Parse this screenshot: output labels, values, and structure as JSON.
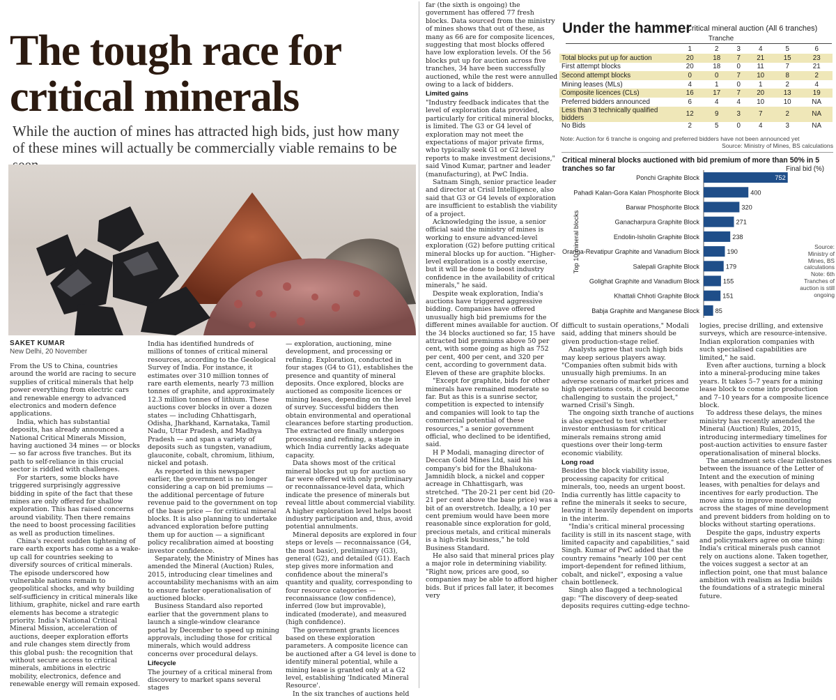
{
  "article": {
    "headline": "The tough race for critical minerals",
    "subhead": "While the auction of mines has attracted high bids, just how many of these mines will actually be commercially viable remains to be seen",
    "byline": "SAKET KUMAR",
    "dateline": "New Delhi, 20 November",
    "col1": [
      "From the US to China, countries around the world are racing to secure supplies of critical minerals that help power everything from electric cars and renewable energy to advanced electronics and modern defence applications.",
      "India, which has substantial deposits, has already announced a National Critical Minerals Mission, having auctioned 34 mines — or blocks — so far across five tranches. But its path to self-reliance in this crucial sector is riddled with challenges.",
      "For starters, some blocks have triggered surprisingly aggressive bidding in spite of the fact that these mines are only offered for shallow exploration. This has raised concerns around viability. Then there remains the need to boost processing facilities as well as production timelines.",
      "China's recent sudden tightening of rare earth exports has come as a wake-up call for countries seeking to diversify sources of critical minerals. The episode underscored how vulnerable nations remain to geopolitical shocks, and why building self-sufficiency in critical minerals like lithium, graphite, nickel and rare earth elements has become a strategic priority. India's National Critical Mineral Mission, acceleration of auctions, deeper exploration efforts and rule changes stem directly from this global push: the recognition that without secure access to critical minerals, ambitions in electric mobility, electronics, defence and renewable energy will remain exposed."
    ],
    "col2": [
      "India has identified hundreds of millions of tonnes of critical mineral resources, according to the Geological Survey of India. For instance, it estimates over 310 million tonnes of rare earth elements, nearly 73 million tonnes of graphite, and approximately 12.3 million tonnes of lithium. These auctions cover blocks in over a dozen states — including Chhattisgarh, Odisha, Jharkhand, Karnataka, Tamil Nadu, Uttar Pradesh, and Madhya Pradesh — and span a variety of deposits such as tungsten, vanadium, glauconite, cobalt, chromium, lithium, nickel and potash.",
      "As reported in this newspaper earlier, the government is no longer considering a cap on bid premiums — the additional percentage of future revenue paid to the government on top of the base price — for critical mineral blocks. It is also planning to undertake advanced exploration before putting them up for auction — a significant policy recalibration aimed at boosting investor confidence.",
      "Separately, the Ministry of Mines has amended the Mineral (Auction) Rules, 2015, introducing clear timelines and accountability mechanisms with an aim to ensure faster operationalisation of auctioned blocks.",
      "Business Standard also reported earlier that the government plans to launch a single-window clearance portal by December to speed up mining approvals, including those for critical minerals, which would address concerns over procedural delays."
    ],
    "col2_heading": "Lifecycle",
    "col2_after": "The journey of a critical mineral from discovery to market spans several stages",
    "col3": [
      "— exploration, auctioning, mine development, and processing or refining. Exploration, conducted in four stages (G4 to G1), establishes the presence and quantity of mineral deposits. Once explored, blocks are auctioned as composite licences or mining leases, depending on the level of survey. Successful bidders then obtain environmental and operational clearances before starting production. The extracted ore finally undergoes processing and refining, a stage in which India currently lacks adequate capacity.",
      "Data shows most of the critical mineral blocks put up for auction so far were offered with only preliminary or reconnaissance-level data, which indicate the presence of minerals but reveal little about commercial viability. A higher exploration level helps boost industry participation and, thus, avoid potential annulments.",
      "Mineral deposits are explored in four steps or levels — reconnaissance (G4, the most basic), preliminary (G3), general (G2), and detailed (G1). Each step gives more information and confidence about the mineral's quantity and quality, corresponding to four resource categories — reconnaissance (low confidence), inferred (low but improvable), indicated (moderate), and measured (high confidence).",
      "The government grants licences based on these exploration parameters. A composite licence can be auctioned after a G4 level is done to identify mineral potential, while a mining lease is granted only at a G2 level, establishing 'Indicated Mineral Resource'.",
      "In the six tranches of auctions held so"
    ],
    "col4": [
      "far (the sixth is ongoing) the government has offered 77 fresh blocks. Data sourced from the ministry of mines shows that out of these, as many as 66 are for composite licences, suggesting that most blocks offered have low exploration levels. Of the 56 blocks put up for auction across five tranches, 34 have been successfully auctioned, while the rest were annulled owing to a lack of bidders."
    ],
    "col4_heading": "Limited gains",
    "col4_after": [
      "\"Industry feedback indicates that the level of exploration data provided, particularly for critical mineral blocks, is limited. The G3 or G4 level of exploration may not meet the expectations of major private firms, who typically seek G1 or G2 level reports to make investment decisions,\" said Vinod Kumar, partner and leader (manufacturing), at PwC India.",
      "Satnam Singh, senior practice leader and director at Crisil Intelligence, also said that G3 or G4 levels of exploration are insufficient to establish the viability of a project.",
      "Acknowledging the issue, a senior official said the ministry of mines is working to ensure advanced-level exploration (G2) before putting critical mineral blocks up for auction. \"Higher-level exploration is a costly exercise, but it will be done to boost industry confidence in the availability of critical minerals,\" he said.",
      "Despite weak exploration, India's auctions have triggered aggressive bidding. Companies have offered unusually high bid premiums for the different mines available for auction. Of the 34 blocks auctioned so far, 15 have attracted bid premiums above 50 per cent, with some going as high as 752 per cent, 400 per cent, and 320 per cent, according to government data. Eleven of these are graphite blocks.",
      "\"Except for graphite, bids for other minerals have remained moderate so far. But as this is a sunrise sector, competition is expected to intensify and companies will look to tap the commercial potential of these resources,\" a senior government official, who declined to be identified, said.",
      "H P Modali, managing director of Deccan Gold Mines Ltd, said his company's bid for the Bhalukona-Jamnidih block, a nickel and copper acreage in Chhattisgarh, was stretched. \"The 20-21 per cent bid (20-21 per cent above the base price) was a bit of an overstretch. Ideally, a 10 per cent premium would have been more reasonable since exploration for gold, precious metals, and critical minerals is a high-risk business,\" he told Business Standard.",
      "He also said that mineral prices play a major role in determining viability. \"Right now, prices are good, so companies may be able to afford higher bids. But if prices fall later, it becomes very"
    ],
    "col5": [
      "difficult to sustain operations,\" Modali said, adding that miners should be given production-stage relief.",
      "Analysts agree that such high bids may keep serious players away. \"Companies often submit bids with unusually high premiums. In an adverse scenario of market prices and high operations costs, it could become challenging to sustain the project,\" warned Crisil's Singh.",
      "The ongoing sixth tranche of auctions is also expected to test whether investor enthusiasm for critical minerals remains strong amid questions over their long-term economic viability."
    ],
    "col5_heading": "Long road",
    "col5_after": [
      "Besides the block viability issue, processing capacity for critical minerals, too, needs an urgent boost. India currently has little capacity to refine the minerals it seeks to secure, leaving it heavily dependent on imports in the interim.",
      "\"India's critical mineral processing facility is still in its nascent stage, with limited capacity and capabilities,\" said Singh. Kumar of PwC added that the country remains \"nearly 100 per cent import-dependent for refined lithium, cobalt, and nickel\", exposing a value chain bottleneck.",
      "Singh also flagged a technological gap: \"The discovery of deep-seated deposits requires cutting-edge techno-"
    ],
    "col6": [
      "logies, precise drilling, and extensive surveys, which are resource-intensive. Indian exploration companies with such specialised capabilities are limited,\" he said.",
      "Even after auctions, turning a block into a mineral-producing mine takes years. It takes 5–7 years for a mining lease block to come into production and 7–10 years for a composite licence block.",
      "To address these delays, the mines ministry has recently amended the Mineral (Auction) Rules, 2015, introducing intermediary timelines for post-auction activities to ensure faster operationalisation of mineral blocks.",
      "The amendment sets clear milestones between the issuance of the Letter of Intent and the execution of mining leases, with penalties for delays and incentives for early production. The move aims to improve monitoring across the stages of mine development and prevent bidders from holding on to blocks without starting operations.",
      "Despite the gaps, industry experts and policymakers agree on one thing: India's critical minerals push cannot rely on auctions alone. Taken together, the voices suggest a sector at an inflection point, one that must balance ambition with realism as India builds the foundations of a strategic mineral future."
    ]
  },
  "table": {
    "title": "Under the hammer",
    "subtitle": "Critical mineral auction (All 6 tranches)",
    "group_label": "Tranche",
    "columns": [
      "1",
      "2",
      "3",
      "4",
      "5",
      "6"
    ],
    "rows": [
      {
        "label": "Total blocks put up for auction",
        "values": [
          "20",
          "18",
          "7",
          "21",
          "15",
          "23"
        ],
        "shaded": true
      },
      {
        "label": "First attempt blocks",
        "values": [
          "20",
          "18",
          "0",
          "11",
          "7",
          "21"
        ],
        "shaded": false
      },
      {
        "label": "Second attempt blocks",
        "values": [
          "0",
          "0",
          "7",
          "10",
          "8",
          "2"
        ],
        "shaded": true
      },
      {
        "label": "Mining leases (MLs)",
        "values": [
          "4",
          "1",
          "0",
          "1",
          "2",
          "4"
        ],
        "shaded": false
      },
      {
        "label": "Composite licences (CLs)",
        "values": [
          "16",
          "17",
          "7",
          "20",
          "13",
          "19"
        ],
        "shaded": true
      },
      {
        "label": "Preferred bidders announced",
        "values": [
          "6",
          "4",
          "4",
          "10",
          "10",
          "NA"
        ],
        "shaded": false
      },
      {
        "label": "Less than 3 technically qualified bidders",
        "values": [
          "12",
          "9",
          "3",
          "7",
          "2",
          "NA"
        ],
        "shaded": true
      },
      {
        "label": "No Bids",
        "values": [
          "2",
          "5",
          "0",
          "4",
          "3",
          "NA"
        ],
        "shaded": false
      }
    ],
    "note": "Note: Auction for 6 tranche is ongoing and preferred bidders have not been announced yet",
    "source": "Source: Ministry of Mines, BS calculations"
  },
  "chart_data": {
    "type": "bar",
    "orientation": "horizontal",
    "title": "Critical mineral blocks auctioned with bid premium of more than 50% in 5 tranches so far",
    "unit_label": "Final bid (%)",
    "ylabel": "Top 10 mineral blocks",
    "categories": [
      "Ponchi Graphite Block",
      "Pahadi Kalan-Gora Kalan Phosphorite Block",
      "Barwar Phosphorite Block",
      "Ganacharpura Graphite Block",
      "Endolin-Isholin Graphite Block",
      "Oranga-Revatipur Graphite and Vanadium Block",
      "Salepali Graphite Block",
      "Golighat Graphite and Vanadium Block",
      "Khattali Chhoti Graphite Block",
      "Babja Graphite and Manganese Block"
    ],
    "values": [
      752,
      400,
      320,
      271,
      238,
      190,
      179,
      155,
      151,
      85
    ],
    "xlim": [
      0,
      760
    ],
    "bar_color": "#1f4e89",
    "source_note": "Source: Ministry of Mines, BS calculations Note: 6th Tranches of auction is still ongoing"
  }
}
